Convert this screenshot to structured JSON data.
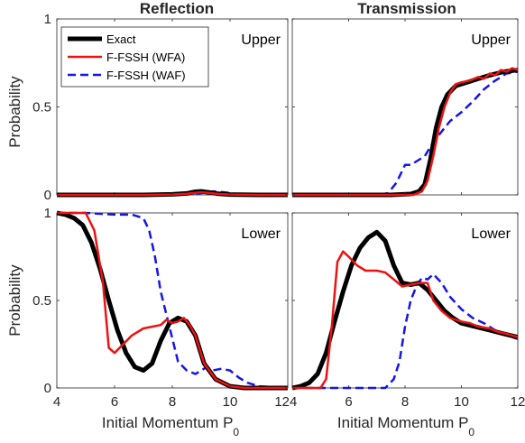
{
  "figure": {
    "column_titles": [
      "Reflection",
      "Transmission"
    ],
    "ylabel": "Probability",
    "xlabel_main": "Initial Momentum P",
    "xlabel_sub": "0"
  },
  "legend": [
    {
      "label": "Exact",
      "color": "#000000",
      "style": "solid-thick"
    },
    {
      "label": "F-FSSH (WFA)",
      "color": "#ee1111",
      "style": "solid"
    },
    {
      "label": "F-FSSH (WAF)",
      "color": "#1515e6",
      "style": "dashed"
    }
  ],
  "chart_data": [
    {
      "type": "line",
      "panel": "top-left",
      "label": "Upper",
      "xlim": [
        4,
        12
      ],
      "ylim": [
        0,
        1
      ],
      "series": [
        {
          "name": "Exact",
          "x": [
            4,
            5,
            6,
            7,
            8,
            8.5,
            8.8,
            9,
            9.3,
            9.6,
            10,
            11,
            12
          ],
          "y": [
            0,
            0,
            0,
            0,
            0.003,
            0.008,
            0.018,
            0.02,
            0.014,
            0.006,
            0.002,
            0,
            0
          ]
        },
        {
          "name": "F-FSSH (WFA)",
          "x": [
            4,
            5,
            6,
            7,
            8,
            8.5,
            8.8,
            9,
            9.3,
            9.6,
            10,
            11,
            12
          ],
          "y": [
            0,
            0,
            0,
            0,
            0.002,
            0.006,
            0.012,
            0.015,
            0.011,
            0.005,
            0.002,
            0,
            0
          ]
        },
        {
          "name": "F-FSSH (WAF)",
          "x": [
            4,
            5,
            6,
            7,
            8,
            8.6,
            9,
            9.4,
            9.8,
            10.2,
            10.6,
            11,
            12
          ],
          "y": [
            0,
            0,
            0,
            0,
            0,
            0.004,
            0.01,
            0.02,
            0.015,
            0.006,
            0.002,
            0,
            0
          ]
        }
      ]
    },
    {
      "type": "line",
      "panel": "top-right",
      "label": "Upper",
      "xlim": [
        4,
        12
      ],
      "ylim": [
        0,
        1
      ],
      "series": [
        {
          "name": "Exact",
          "x": [
            4,
            6,
            7.5,
            8.2,
            8.5,
            8.7,
            8.9,
            9.1,
            9.3,
            9.5,
            9.8,
            10.2,
            10.6,
            11,
            11.5,
            12
          ],
          "y": [
            0,
            0,
            0,
            0.005,
            0.02,
            0.06,
            0.2,
            0.38,
            0.5,
            0.57,
            0.62,
            0.64,
            0.66,
            0.68,
            0.7,
            0.71
          ]
        },
        {
          "name": "F-FSSH (WFA)",
          "x": [
            4,
            6,
            7.5,
            8.3,
            8.6,
            8.8,
            9,
            9.2,
            9.4,
            9.6,
            9.8,
            10,
            10.3,
            10.6,
            10.8,
            11,
            11.2,
            11.4,
            11.6,
            11.8,
            12
          ],
          "y": [
            0,
            0,
            0,
            0,
            0.02,
            0.08,
            0.22,
            0.38,
            0.5,
            0.58,
            0.63,
            0.64,
            0.65,
            0.67,
            0.66,
            0.69,
            0.68,
            0.71,
            0.7,
            0.72,
            0.71
          ]
        },
        {
          "name": "F-FSSH (WAF)",
          "x": [
            4,
            6,
            7,
            7.4,
            7.7,
            8,
            8.2,
            8.5,
            8.7,
            9,
            9.3,
            9.6,
            10,
            10.4,
            10.8,
            11.2,
            11.6,
            12
          ],
          "y": [
            0,
            0,
            0,
            0.01,
            0.07,
            0.17,
            0.17,
            0.2,
            0.22,
            0.3,
            0.36,
            0.42,
            0.47,
            0.53,
            0.6,
            0.65,
            0.69,
            0.7
          ]
        }
      ]
    },
    {
      "type": "line",
      "panel": "bottom-left",
      "label": "Lower",
      "xlim": [
        4,
        12
      ],
      "ylim": [
        0,
        1
      ],
      "series": [
        {
          "name": "Exact",
          "x": [
            4,
            4.3,
            4.6,
            4.9,
            5.2,
            5.5,
            5.8,
            6.1,
            6.4,
            6.7,
            7,
            7.3,
            7.6,
            7.9,
            8.2,
            8.5,
            8.8,
            9.1,
            9.5,
            10,
            10.5,
            11,
            11.5,
            12
          ],
          "y": [
            1,
            0.99,
            0.97,
            0.93,
            0.83,
            0.68,
            0.5,
            0.33,
            0.2,
            0.12,
            0.1,
            0.14,
            0.27,
            0.37,
            0.4,
            0.38,
            0.3,
            0.14,
            0.05,
            0.01,
            0,
            0,
            0,
            0
          ]
        },
        {
          "name": "F-FSSH (WFA)",
          "x": [
            4,
            4.5,
            5,
            5.3,
            5.6,
            5.8,
            6,
            6.3,
            6.6,
            7,
            7.3,
            7.6,
            7.8,
            8,
            8.2,
            8.4,
            8.6,
            8.8,
            9.1,
            9.5,
            10,
            10.5,
            11,
            12
          ],
          "y": [
            1,
            1,
            1,
            0.9,
            0.6,
            0.23,
            0.2,
            0.25,
            0.3,
            0.34,
            0.35,
            0.36,
            0.39,
            0.37,
            0.38,
            0.4,
            0.36,
            0.3,
            0.14,
            0.05,
            0.01,
            0,
            0,
            0
          ]
        },
        {
          "name": "F-FSSH (WAF)",
          "x": [
            4,
            5,
            6,
            6.6,
            7,
            7.2,
            7.4,
            7.6,
            7.9,
            8.2,
            8.5,
            8.8,
            9,
            9.2,
            9.4,
            9.7,
            10,
            10.3,
            10.6,
            11,
            12
          ],
          "y": [
            1,
            1,
            0.99,
            0.99,
            0.97,
            0.9,
            0.75,
            0.55,
            0.35,
            0.15,
            0.1,
            0.08,
            0.1,
            0.12,
            0.1,
            0.11,
            0.1,
            0.06,
            0.03,
            0.01,
            0
          ]
        }
      ]
    },
    {
      "type": "line",
      "panel": "bottom-right",
      "label": "Lower",
      "xlim": [
        4,
        12
      ],
      "ylim": [
        0,
        1
      ],
      "series": [
        {
          "name": "Exact",
          "x": [
            4,
            4.3,
            4.6,
            4.9,
            5.2,
            5.5,
            5.8,
            6.1,
            6.4,
            6.7,
            7,
            7.3,
            7.6,
            7.9,
            8.2,
            8.5,
            8.8,
            9.1,
            9.4,
            9.7,
            10,
            10.5,
            11,
            11.5,
            12
          ],
          "y": [
            0,
            0.01,
            0.03,
            0.08,
            0.2,
            0.38,
            0.55,
            0.7,
            0.8,
            0.86,
            0.89,
            0.84,
            0.7,
            0.6,
            0.59,
            0.6,
            0.56,
            0.5,
            0.44,
            0.4,
            0.37,
            0.35,
            0.33,
            0.31,
            0.29
          ]
        },
        {
          "name": "F-FSSH (WFA)",
          "x": [
            4,
            5,
            5.2,
            5.4,
            5.6,
            5.8,
            6,
            6.3,
            6.6,
            7,
            7.3,
            7.6,
            7.9,
            8.2,
            8.5,
            8.8,
            9,
            9.3,
            9.6,
            10,
            10.3,
            10.6,
            11,
            11.3,
            11.6,
            12
          ],
          "y": [
            0,
            0,
            0.05,
            0.35,
            0.72,
            0.78,
            0.75,
            0.7,
            0.67,
            0.67,
            0.66,
            0.62,
            0.58,
            0.59,
            0.6,
            0.6,
            0.5,
            0.44,
            0.4,
            0.38,
            0.37,
            0.35,
            0.34,
            0.32,
            0.31,
            0.29
          ]
        },
        {
          "name": "F-FSSH (WAF)",
          "x": [
            4,
            6,
            7.3,
            7.6,
            7.8,
            8,
            8.2,
            8.4,
            8.6,
            8.8,
            9,
            9.3,
            9.6,
            10,
            10.4,
            10.8,
            11.2,
            11.6,
            12
          ],
          "y": [
            0,
            0,
            0,
            0.05,
            0.15,
            0.35,
            0.5,
            0.58,
            0.63,
            0.62,
            0.65,
            0.6,
            0.52,
            0.45,
            0.4,
            0.37,
            0.33,
            0.3,
            0.28
          ]
        }
      ]
    }
  ],
  "axes": {
    "x_ticks": [
      4,
      6,
      8,
      10,
      12
    ],
    "x_tick_labels_left": [
      "4",
      "6",
      "8",
      "10",
      "12"
    ],
    "x_tick_labels_right": [
      "4",
      "6",
      "8",
      "10",
      "12"
    ],
    "y_ticks_top": [
      0,
      0.5,
      1
    ],
    "y_tick_labels_top": [
      "0",
      "0.5",
      "1"
    ],
    "y_ticks_bottom": [
      0,
      0.5,
      1
    ],
    "y_tick_labels_bottom": [
      "0",
      "0.5",
      "1"
    ]
  }
}
